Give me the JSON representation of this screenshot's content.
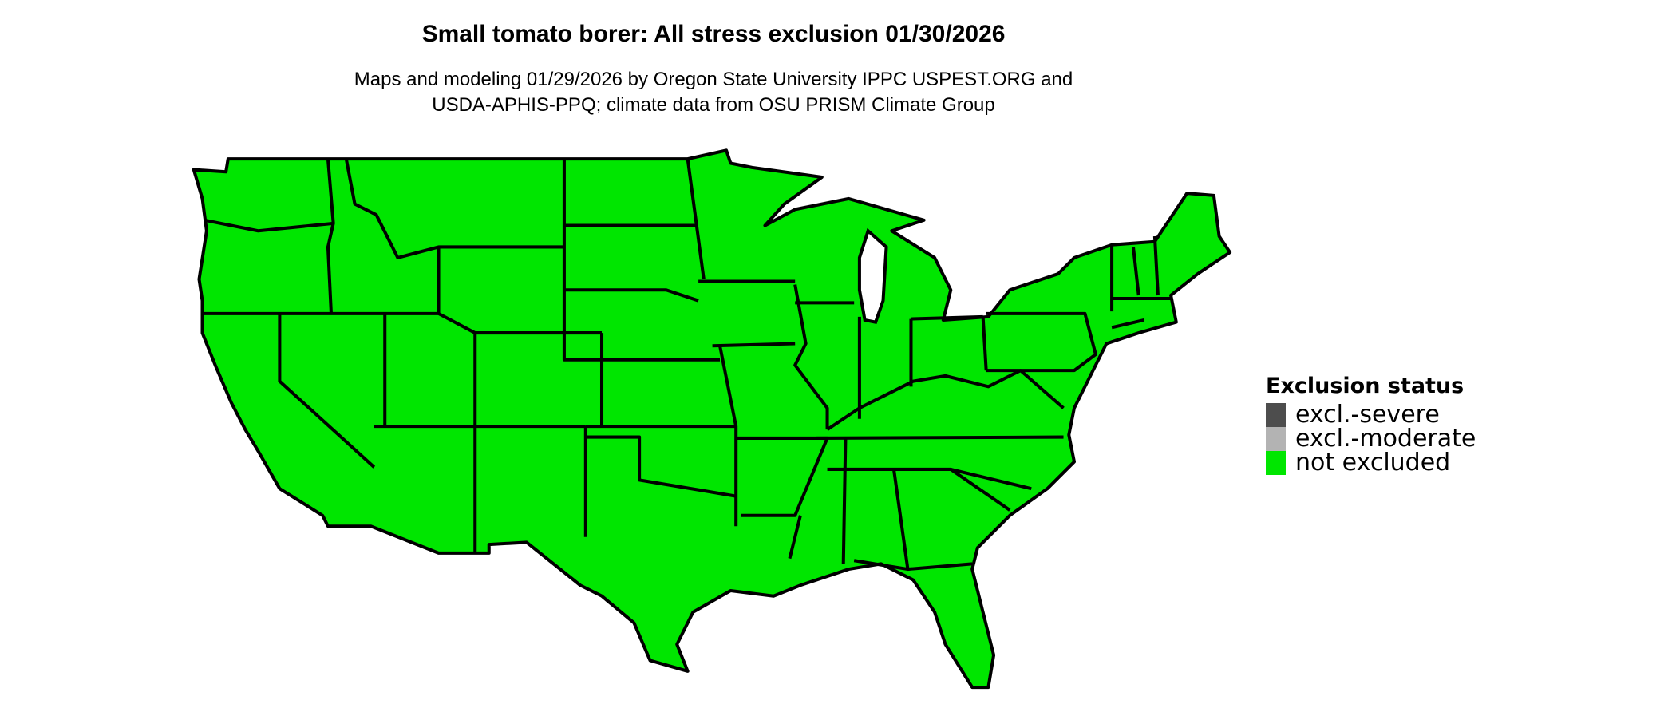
{
  "title": "Small tomato borer: All stress exclusion 01/30/2026",
  "subtitle_lines": [
    "Maps and modeling 01/29/2026 by Oregon State University IPPC USPEST.ORG and",
    "USDA-APHIS-PPQ; climate data from OSU PRISM Climate Group"
  ],
  "map": {
    "region": "Contiguous United States, state boundaries",
    "fill_status": "not excluded",
    "fill_color": "#00e600",
    "border_color": "#000000"
  },
  "legend": {
    "title": "Exclusion status",
    "items": [
      {
        "label": "excl.-severe",
        "color": "#4d4d4d"
      },
      {
        "label": "excl.-moderate",
        "color": "#b3b3b3"
      },
      {
        "label": "not excluded",
        "color": "#00e600"
      }
    ]
  }
}
